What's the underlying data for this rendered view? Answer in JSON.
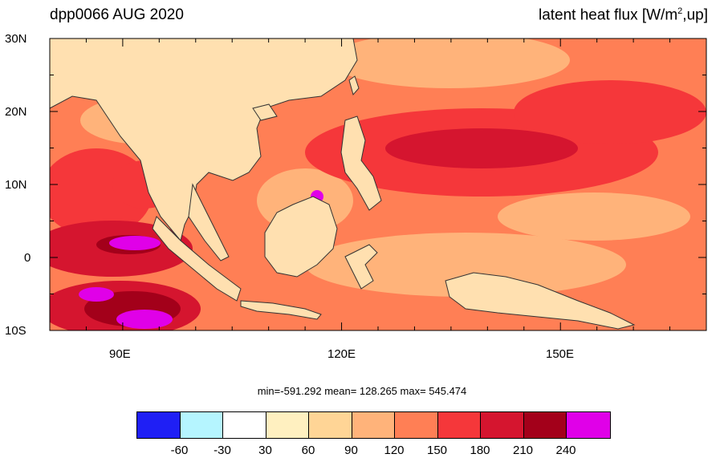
{
  "map": {
    "title_left": "dpp0066 AUG 2020",
    "title_right_pre": "latent heat flux [W/m",
    "title_right_sup": "2",
    "title_right_post": ",up]",
    "region": {
      "lon_min": 80,
      "lon_max": 170,
      "lat_min": -10,
      "lat_max": 30
    },
    "lat_labels": [
      "30N",
      "20N",
      "10N",
      "0",
      "10S"
    ],
    "lon_labels": [
      "90E",
      "120E",
      "150E"
    ],
    "stats_text": "min=-591.292  mean= 128.265  max= 545.474",
    "colorbar": {
      "colors": [
        "#1f1ff5",
        "#b5f5ff",
        "#ffffff",
        "#fff0c0",
        "#ffd596",
        "#ffb37a",
        "#ff7f55",
        "#f5373a",
        "#d5152f",
        "#a3001a",
        "#e000e8"
      ],
      "labels": [
        "-60",
        "-30",
        "30",
        "60",
        "90",
        "120",
        "150",
        "180",
        "210",
        "240"
      ]
    },
    "land_color": "#ffe0b0",
    "coast_color": "#333333"
  }
}
